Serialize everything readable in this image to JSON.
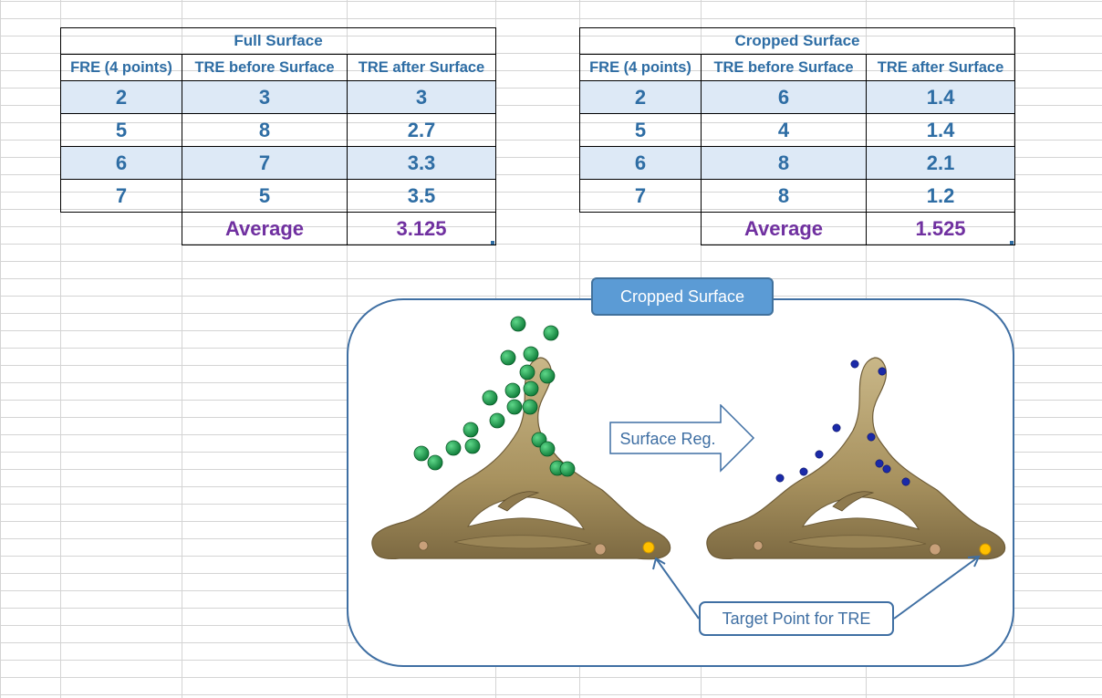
{
  "full_surface": {
    "title": "Full Surface",
    "headers": [
      "FRE (4 points)",
      "TRE before Surface",
      "TRE after Surface"
    ],
    "rows": [
      [
        "2",
        "3",
        "3"
      ],
      [
        "5",
        "8",
        "2.7"
      ],
      [
        "6",
        "7",
        "3.3"
      ],
      [
        "7",
        "5",
        "3.5"
      ]
    ],
    "average_label": "Average",
    "average_value": "3.125"
  },
  "cropped_surface": {
    "title": "Cropped Surface",
    "headers": [
      "FRE (4 points)",
      "TRE before Surface",
      "TRE after Surface"
    ],
    "rows": [
      [
        "2",
        "6",
        "1.4"
      ],
      [
        "5",
        "4",
        "1.4"
      ],
      [
        "6",
        "8",
        "2.1"
      ],
      [
        "7",
        "8",
        "1.2"
      ]
    ],
    "average_label": "Average",
    "average_value": "1.525"
  },
  "figure": {
    "panel_title": "Cropped Surface",
    "arrow_label": "Surface Reg.",
    "target_label": "Target Point for TRE"
  },
  "colors": {
    "header_text": "#2e6da4",
    "average_text": "#7030a0",
    "band_fill": "#dde9f6",
    "panel_border": "#3f6fa3",
    "title_box": "#5b9bd5",
    "bone": "#b39f6e",
    "green_points": "#1aa552",
    "blue_points": "#1b2aa8",
    "target_point": "#ffc000"
  }
}
